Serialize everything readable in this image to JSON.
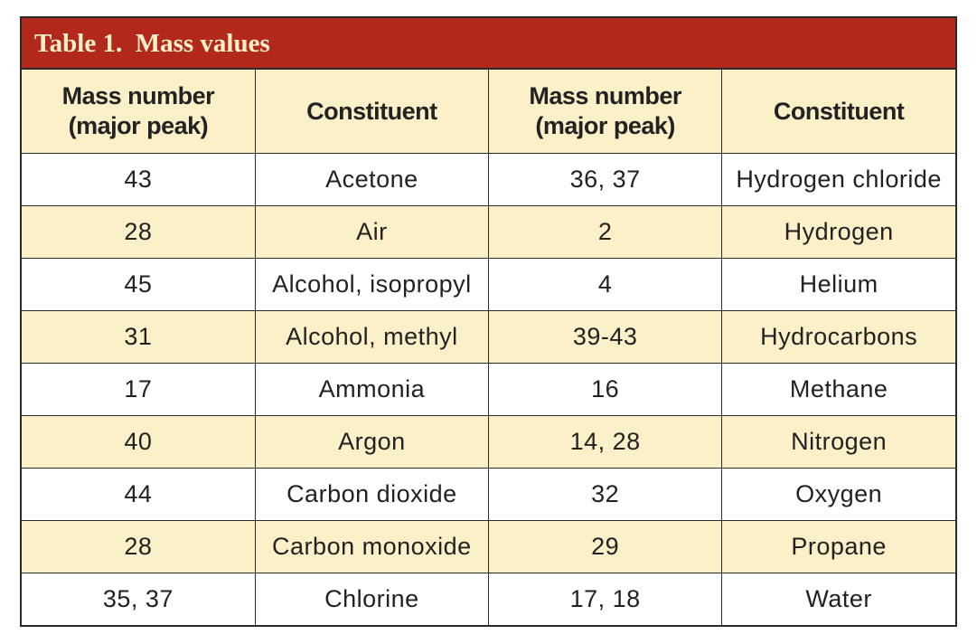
{
  "table": {
    "title": "Table 1.  Mass values",
    "header": [
      "Mass number\n(major peak)",
      "Constituent",
      "Mass number\n(major peak)",
      "Constituent"
    ],
    "rows": [
      [
        "43",
        "Acetone",
        "36, 37",
        "Hydrogen chloride"
      ],
      [
        "28",
        "Air",
        "2",
        "Hydrogen"
      ],
      [
        "45",
        "Alcohol, isopropyl",
        "4",
        "Helium"
      ],
      [
        "31",
        "Alcohol, methyl",
        "39-43",
        "Hydrocarbons"
      ],
      [
        "17",
        "Ammonia",
        "16",
        "Methane"
      ],
      [
        "40",
        "Argon",
        "14, 28",
        "Nitrogen"
      ],
      [
        "44",
        "Carbon dioxide",
        "32",
        "Oxygen"
      ],
      [
        "28",
        "Carbon monoxide",
        "29",
        "Propane"
      ],
      [
        "35, 37",
        "Chlorine",
        "17, 18",
        "Water"
      ]
    ]
  }
}
